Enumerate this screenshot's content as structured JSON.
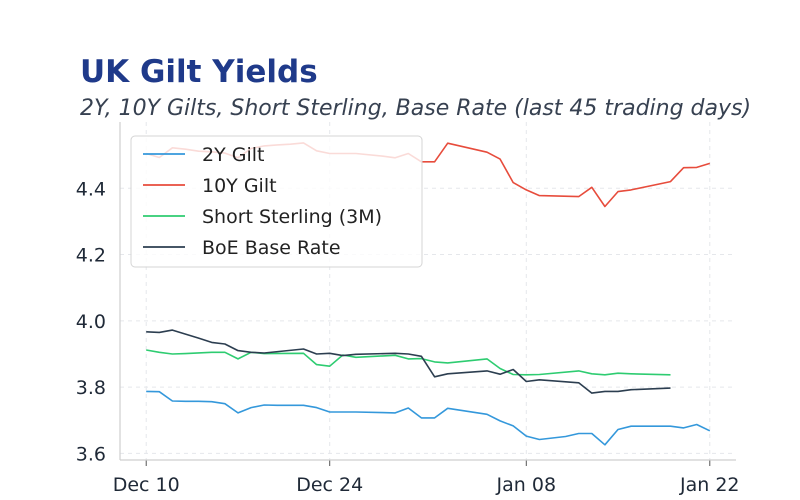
{
  "chart_data": {
    "type": "line",
    "title": "UK Gilt Yields",
    "subtitle": "2Y, 10Y Gilts, Short Sterling, Base Rate (last 45 trading days)",
    "xlabel": "",
    "ylabel": "",
    "ylim": [
      3.58,
      4.6
    ],
    "xlim": [
      "2023-12-08",
      "2024-01-24"
    ],
    "x_ticks": [
      {
        "date": "2023-12-10",
        "label": "Dec 10"
      },
      {
        "date": "2023-12-24",
        "label": "Dec 24"
      },
      {
        "date": "2024-01-08",
        "label": "Jan 08"
      },
      {
        "date": "2024-01-22",
        "label": "Jan 22"
      }
    ],
    "y_ticks": [
      3.6,
      3.8,
      4.0,
      4.2,
      4.4
    ],
    "grid": true,
    "legend_position": "top-left",
    "series": [
      {
        "name": "2Y Gilt",
        "color": "#3498db",
        "points": [
          [
            "2023-12-10",
            3.787
          ],
          [
            "2023-12-11",
            3.786
          ],
          [
            "2023-12-12",
            3.758
          ],
          [
            "2023-12-13",
            3.757
          ],
          [
            "2023-12-14",
            3.757
          ],
          [
            "2023-12-15",
            3.756
          ],
          [
            "2023-12-16",
            3.75
          ],
          [
            "2023-12-17",
            3.722
          ],
          [
            "2023-12-18",
            3.738
          ],
          [
            "2023-12-19",
            3.746
          ],
          [
            "2023-12-20",
            3.745
          ],
          [
            "2023-12-21",
            3.745
          ],
          [
            "2023-12-22",
            3.745
          ],
          [
            "2023-12-23",
            3.738
          ],
          [
            "2023-12-24",
            3.725
          ],
          [
            "2023-12-26",
            3.725
          ],
          [
            "2023-12-28",
            3.723
          ],
          [
            "2023-12-29",
            3.722
          ],
          [
            "2023-12-30",
            3.737
          ],
          [
            "2023-12-31",
            3.707
          ],
          [
            "2024-01-01",
            3.707
          ],
          [
            "2024-01-02",
            3.736
          ],
          [
            "2024-01-05",
            3.718
          ],
          [
            "2024-01-06",
            3.698
          ],
          [
            "2024-01-07",
            3.683
          ],
          [
            "2024-01-08",
            3.652
          ],
          [
            "2024-01-09",
            3.642
          ],
          [
            "2024-01-11",
            3.651
          ],
          [
            "2024-01-12",
            3.66
          ],
          [
            "2024-01-13",
            3.66
          ],
          [
            "2024-01-14",
            3.626
          ],
          [
            "2024-01-15",
            3.672
          ],
          [
            "2024-01-16",
            3.682
          ],
          [
            "2024-01-17",
            3.682
          ],
          [
            "2024-01-18",
            3.682
          ],
          [
            "2024-01-19",
            3.682
          ],
          [
            "2024-01-20",
            3.677
          ],
          [
            "2024-01-21",
            3.687
          ],
          [
            "2024-01-22",
            3.668
          ]
        ]
      },
      {
        "name": "10Y Gilt",
        "color": "#e74c3c",
        "points": [
          [
            "2023-12-10",
            4.505
          ],
          [
            "2023-12-11",
            4.493
          ],
          [
            "2023-12-12",
            4.522
          ],
          [
            "2023-12-13",
            4.518
          ],
          [
            "2023-12-14",
            4.512
          ],
          [
            "2023-12-15",
            4.51
          ],
          [
            "2023-12-16",
            4.506
          ],
          [
            "2023-12-17",
            4.492
          ],
          [
            "2023-12-18",
            4.52
          ],
          [
            "2023-12-19",
            4.528
          ],
          [
            "2023-12-20",
            4.531
          ],
          [
            "2023-12-21",
            4.533
          ],
          [
            "2023-12-22",
            4.537
          ],
          [
            "2023-12-23",
            4.513
          ],
          [
            "2023-12-24",
            4.505
          ],
          [
            "2023-12-26",
            4.505
          ],
          [
            "2023-12-28",
            4.497
          ],
          [
            "2023-12-29",
            4.492
          ],
          [
            "2023-12-30",
            4.505
          ],
          [
            "2023-12-31",
            4.48
          ],
          [
            "2024-01-01",
            4.48
          ],
          [
            "2024-01-02",
            4.536
          ],
          [
            "2024-01-05",
            4.509
          ],
          [
            "2024-01-06",
            4.488
          ],
          [
            "2024-01-07",
            4.417
          ],
          [
            "2024-01-08",
            4.395
          ],
          [
            "2024-01-09",
            4.378
          ],
          [
            "2024-01-12",
            4.375
          ],
          [
            "2024-01-13",
            4.403
          ],
          [
            "2024-01-14",
            4.345
          ],
          [
            "2024-01-15",
            4.39
          ],
          [
            "2024-01-16",
            4.395
          ],
          [
            "2024-01-19",
            4.42
          ],
          [
            "2024-01-20",
            4.462
          ],
          [
            "2024-01-21",
            4.463
          ],
          [
            "2024-01-22",
            4.475
          ]
        ]
      },
      {
        "name": "Short Sterling (3M)",
        "color": "#2ecc71",
        "points": [
          [
            "2023-12-10",
            3.912
          ],
          [
            "2023-12-11",
            3.905
          ],
          [
            "2023-12-12",
            3.9
          ],
          [
            "2023-12-13",
            3.901
          ],
          [
            "2023-12-15",
            3.905
          ],
          [
            "2023-12-16",
            3.905
          ],
          [
            "2023-12-17",
            3.885
          ],
          [
            "2023-12-18",
            3.905
          ],
          [
            "2023-12-19",
            3.901
          ],
          [
            "2023-12-22",
            3.902
          ],
          [
            "2023-12-23",
            3.868
          ],
          [
            "2023-12-24",
            3.863
          ],
          [
            "2023-12-25",
            3.897
          ],
          [
            "2023-12-26",
            3.89
          ],
          [
            "2023-12-29",
            3.896
          ],
          [
            "2023-12-30",
            3.885
          ],
          [
            "2023-12-31",
            3.886
          ],
          [
            "2024-01-01",
            3.876
          ],
          [
            "2024-01-02",
            3.873
          ],
          [
            "2024-01-05",
            3.885
          ],
          [
            "2024-01-06",
            3.856
          ],
          [
            "2024-01-07",
            3.838
          ],
          [
            "2024-01-08",
            3.837
          ],
          [
            "2024-01-09",
            3.838
          ],
          [
            "2024-01-12",
            3.849
          ],
          [
            "2024-01-13",
            3.84
          ],
          [
            "2024-01-14",
            3.837
          ],
          [
            "2024-01-15",
            3.842
          ],
          [
            "2024-01-16",
            3.84
          ],
          [
            "2024-01-19",
            3.837
          ]
        ]
      },
      {
        "name": "BoE Base Rate",
        "color": "#2c3e50",
        "points": [
          [
            "2023-12-10",
            3.967
          ],
          [
            "2023-12-11",
            3.965
          ],
          [
            "2023-12-12",
            3.972
          ],
          [
            "2023-12-13",
            3.96
          ],
          [
            "2023-12-14",
            3.948
          ],
          [
            "2023-12-15",
            3.935
          ],
          [
            "2023-12-16",
            3.93
          ],
          [
            "2023-12-17",
            3.91
          ],
          [
            "2023-12-18",
            3.905
          ],
          [
            "2023-12-19",
            3.903
          ],
          [
            "2023-12-22",
            3.915
          ],
          [
            "2023-12-23",
            3.9
          ],
          [
            "2023-12-24",
            3.902
          ],
          [
            "2023-12-25",
            3.895
          ],
          [
            "2023-12-26",
            3.899
          ],
          [
            "2023-12-29",
            3.902
          ],
          [
            "2023-12-30",
            3.9
          ],
          [
            "2023-12-31",
            3.893
          ],
          [
            "2024-01-01",
            3.831
          ],
          [
            "2024-01-02",
            3.84
          ],
          [
            "2024-01-05",
            3.849
          ],
          [
            "2024-01-06",
            3.839
          ],
          [
            "2024-01-07",
            3.853
          ],
          [
            "2024-01-08",
            3.817
          ],
          [
            "2024-01-09",
            3.822
          ],
          [
            "2024-01-12",
            3.813
          ],
          [
            "2024-01-13",
            3.782
          ],
          [
            "2024-01-14",
            3.787
          ],
          [
            "2024-01-15",
            3.787
          ],
          [
            "2024-01-16",
            3.792
          ],
          [
            "2024-01-19",
            3.797
          ]
        ]
      }
    ]
  }
}
